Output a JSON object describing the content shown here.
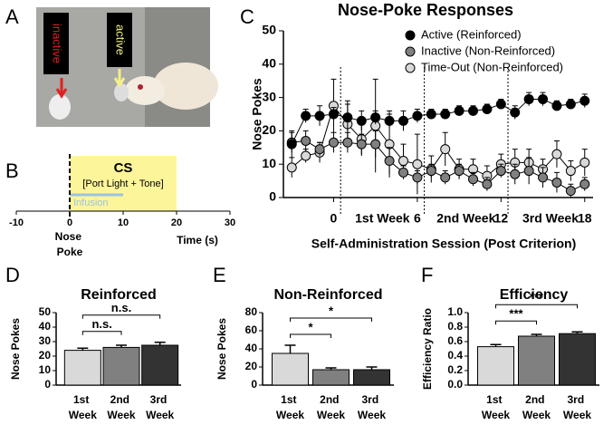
{
  "photo": {
    "panel": "A",
    "labels": [
      "inactive",
      "active"
    ]
  },
  "timeline": {
    "panel": "B",
    "xlim": [
      -10,
      30
    ],
    "xticks": [
      -10,
      0,
      10,
      20,
      30
    ],
    "xlabel": "Time (s)",
    "event_label": "Nose Poke",
    "cs": {
      "label": "CS",
      "sublabel": "[Port Light + Tone]",
      "start": 0,
      "end": 20,
      "color": "#fdf59a"
    },
    "infusion": {
      "label": "Infusion",
      "start": 0,
      "end": 10,
      "color": "#9cc3e4"
    }
  },
  "chart_data": [
    {
      "type": "line",
      "panel": "C",
      "title": "Nose-Poke Responses",
      "xlabel": "Self-Administration Session (Post Criterion)",
      "ylabel": "Nose Pokes",
      "x": [
        -3,
        -2,
        -1,
        0,
        1,
        2,
        3,
        4,
        5,
        6,
        7,
        8,
        9,
        10,
        11,
        12,
        13,
        14,
        15,
        16,
        17,
        18
      ],
      "xlim": [
        -3.6,
        18.6
      ],
      "xticks": [
        0,
        6,
        12,
        18
      ],
      "ylim": [
        0,
        50
      ],
      "yticks": [
        0,
        10,
        20,
        30,
        40,
        50
      ],
      "legend": "top-right",
      "weeks": [
        {
          "label": "1st Week",
          "start": 0.5,
          "end": 6.5
        },
        {
          "label": "2nd Week",
          "start": 6.5,
          "end": 12.5
        },
        {
          "label": "3rd Week",
          "start": 12.5,
          "end": 18.6
        }
      ],
      "series": [
        {
          "name": "Active (Reinforced)",
          "color": "#000000",
          "values": [
            16,
            24.5,
            24.5,
            25,
            24,
            23,
            24,
            23,
            23,
            24.5,
            25,
            25,
            26,
            26,
            26.5,
            28,
            25.5,
            29.5,
            29.5,
            27.5,
            28,
            29
          ],
          "errors": [
            4,
            2,
            3,
            2,
            4,
            3,
            2,
            2,
            3,
            2,
            1.5,
            1.5,
            1.5,
            1.5,
            1.5,
            1.5,
            2,
            2,
            2,
            1.5,
            1.5,
            2
          ]
        },
        {
          "name": "Inactive (Non-Reinforced)",
          "color": "#808080",
          "values": [
            16.5,
            17,
            14.5,
            16.5,
            16.5,
            16,
            16,
            11,
            7.5,
            6,
            8,
            6,
            8,
            5.5,
            4,
            8,
            7,
            8,
            6,
            4.5,
            2,
            4
          ],
          "errors": [
            3,
            3,
            2,
            3,
            3,
            3,
            4,
            4,
            2,
            2,
            2,
            2,
            2,
            2,
            2,
            2,
            3,
            4,
            3,
            3,
            2,
            2
          ]
        },
        {
          "name": "Time-Out (Non-Reinforced)",
          "color": "#d9d9d9",
          "values": [
            9,
            12.5,
            13.5,
            27.5,
            22,
            17.5,
            21.5,
            16,
            11,
            10,
            8.5,
            14.5,
            8.5,
            8.5,
            6.5,
            10,
            10.5,
            10.5,
            8.5,
            13,
            8,
            10.5
          ],
          "errors": [
            3,
            2,
            3,
            8,
            7,
            5,
            14,
            10,
            5,
            9,
            4,
            5,
            3,
            3,
            3,
            3,
            4,
            4,
            3,
            4,
            3,
            4
          ]
        }
      ]
    },
    {
      "type": "bar",
      "panel": "D",
      "title": "Reinforced",
      "ylabel": "Nose Pokes",
      "categories": [
        "1st Week",
        "2nd Week",
        "3rd Week"
      ],
      "values": [
        24,
        26,
        27.5
      ],
      "errors": [
        1.5,
        1.5,
        2
      ],
      "colors": [
        "#d9d9d9",
        "#808080",
        "#333333"
      ],
      "ylim": [
        0,
        50
      ],
      "yticks": [
        0,
        10,
        20,
        30,
        40,
        50
      ],
      "comparisons": [
        {
          "pair": [
            0,
            1
          ],
          "label": "n.s."
        },
        {
          "pair": [
            0,
            2
          ],
          "label": "n.s."
        }
      ]
    },
    {
      "type": "bar",
      "panel": "E",
      "title": "Non-Reinforced",
      "ylabel": "Nose Pokes",
      "categories": [
        "1st Week",
        "2nd Week",
        "3rd Week"
      ],
      "values": [
        35,
        17,
        17
      ],
      "errors": [
        9,
        2,
        3
      ],
      "colors": [
        "#d9d9d9",
        "#808080",
        "#333333"
      ],
      "ylim": [
        0,
        80
      ],
      "yticks": [
        0,
        20,
        40,
        60,
        80
      ],
      "comparisons": [
        {
          "pair": [
            0,
            1
          ],
          "label": "*"
        },
        {
          "pair": [
            0,
            2
          ],
          "label": "*"
        }
      ]
    },
    {
      "type": "bar",
      "panel": "F",
      "title": "Efficiency",
      "ylabel": "Efficiency Ratio",
      "categories": [
        "1st Week",
        "2nd Week",
        "3rd Week"
      ],
      "values": [
        0.53,
        0.675,
        0.71
      ],
      "errors": [
        0.03,
        0.025,
        0.025
      ],
      "colors": [
        "#d9d9d9",
        "#808080",
        "#333333"
      ],
      "ylim": [
        0,
        1
      ],
      "yticks": [
        {
          "value": 0,
          "label": "0.0"
        },
        {
          "value": 0.2,
          "label": "0.2"
        },
        {
          "value": 0.4,
          "label": "0.4"
        },
        {
          "value": 0.6,
          "label": "0.6"
        },
        {
          "value": 0.8,
          "label": "0.8"
        },
        {
          "value": 1,
          "label": "1.0"
        }
      ],
      "comparisons": [
        {
          "pair": [
            0,
            1
          ],
          "label": "***"
        },
        {
          "pair": [
            0,
            2
          ],
          "label": "***"
        }
      ]
    }
  ]
}
